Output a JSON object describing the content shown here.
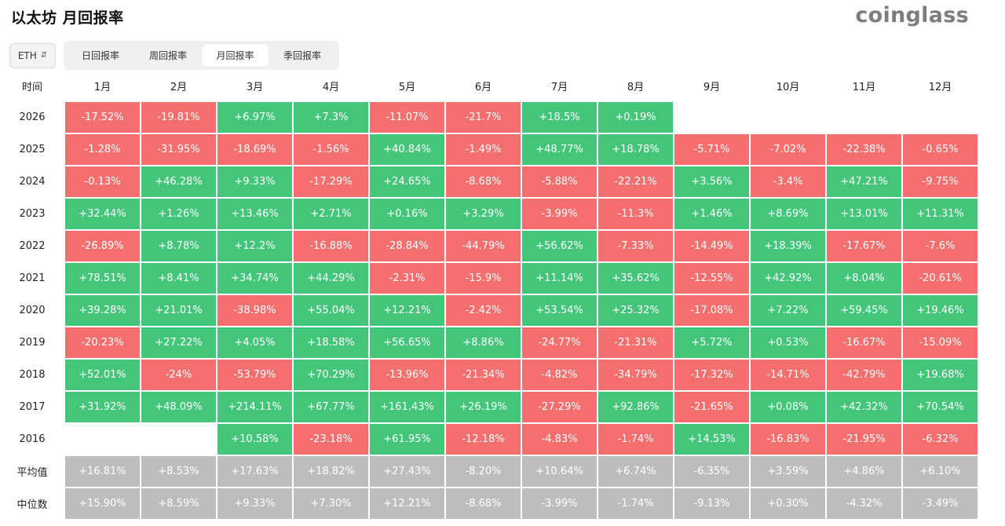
{
  "header": {
    "title": "以太坊 月回报率",
    "brand": "coinglass"
  },
  "controls": {
    "asset": "ETH",
    "tabs": [
      {
        "label": "日回报率",
        "active": false
      },
      {
        "label": "周回报率",
        "active": false
      },
      {
        "label": "月回报率",
        "active": true
      },
      {
        "label": "季回报率",
        "active": false
      }
    ]
  },
  "colors": {
    "negative": "#f56f6f",
    "positive": "#43c57a",
    "summary": "#bdbdbd"
  },
  "table": {
    "corner_label": "时间",
    "months": [
      "1月",
      "2月",
      "3月",
      "4月",
      "5月",
      "6月",
      "7月",
      "8月",
      "9月",
      "10月",
      "11月",
      "12月"
    ],
    "rows": [
      {
        "year": "2026",
        "values": [
          "-17.52%",
          "-19.81%",
          "+6.97%",
          "+7.3%",
          "-11.07%",
          "-21.7%",
          "+18.5%",
          "+0.19%",
          "",
          "",
          "",
          ""
        ]
      },
      {
        "year": "2025",
        "values": [
          "-1.28%",
          "-31.95%",
          "-18.69%",
          "-1.56%",
          "+40.84%",
          "-1.49%",
          "+48.77%",
          "+18.78%",
          "-5.71%",
          "-7.02%",
          "-22.38%",
          "-0.65%"
        ]
      },
      {
        "year": "2024",
        "values": [
          "-0.13%",
          "+46.28%",
          "+9.33%",
          "-17.29%",
          "+24.65%",
          "-8.68%",
          "-5.88%",
          "-22.21%",
          "+3.56%",
          "-3.4%",
          "+47.21%",
          "-9.75%"
        ]
      },
      {
        "year": "2023",
        "values": [
          "+32.44%",
          "+1.26%",
          "+13.46%",
          "+2.71%",
          "+0.16%",
          "+3.29%",
          "-3.99%",
          "-11.3%",
          "+1.46%",
          "+8.69%",
          "+13.01%",
          "+11.31%"
        ]
      },
      {
        "year": "2022",
        "values": [
          "-26.89%",
          "+8.78%",
          "+12.2%",
          "-16.88%",
          "-28.84%",
          "-44.79%",
          "+56.62%",
          "-7.33%",
          "-14.49%",
          "+18.39%",
          "-17.67%",
          "-7.6%"
        ]
      },
      {
        "year": "2021",
        "values": [
          "+78.51%",
          "+8.41%",
          "+34.74%",
          "+44.29%",
          "-2.31%",
          "-15.9%",
          "+11.14%",
          "+35.62%",
          "-12.55%",
          "+42.92%",
          "+8.04%",
          "-20.61%"
        ]
      },
      {
        "year": "2020",
        "values": [
          "+39.28%",
          "+21.01%",
          "-38.98%",
          "+55.04%",
          "+12.21%",
          "-2.42%",
          "+53.54%",
          "+25.32%",
          "-17.08%",
          "+7.22%",
          "+59.45%",
          "+19.46%"
        ]
      },
      {
        "year": "2019",
        "values": [
          "-20.23%",
          "+27.22%",
          "+4.05%",
          "+18.58%",
          "+56.65%",
          "+8.86%",
          "-24.77%",
          "-21.31%",
          "+5.72%",
          "+0.53%",
          "-16.67%",
          "-15.09%"
        ]
      },
      {
        "year": "2018",
        "values": [
          "+52.01%",
          "-24%",
          "-53.79%",
          "+70.29%",
          "-13.96%",
          "-21.34%",
          "-4.82%",
          "-34.79%",
          "-17.32%",
          "-14.71%",
          "-42.79%",
          "+19.68%"
        ]
      },
      {
        "year": "2017",
        "values": [
          "+31.92%",
          "+48.09%",
          "+214.11%",
          "+67.77%",
          "+161.43%",
          "+26.19%",
          "-27.29%",
          "+92.86%",
          "-21.65%",
          "+0.08%",
          "+42.32%",
          "+70.54%"
        ]
      },
      {
        "year": "2016",
        "values": [
          "",
          "",
          "+10.58%",
          "-23.18%",
          "+61.95%",
          "-12.18%",
          "-4.83%",
          "-1.74%",
          "+14.53%",
          "-16.83%",
          "-21.95%",
          "-6.32%"
        ]
      }
    ],
    "summary": [
      {
        "label": "平均值",
        "values": [
          "+16.81%",
          "+8.53%",
          "+17.63%",
          "+18.82%",
          "+27.43%",
          "-8.20%",
          "+10.64%",
          "+6.74%",
          "-6.35%",
          "+3.59%",
          "+4.86%",
          "+6.10%"
        ]
      },
      {
        "label": "中位数",
        "values": [
          "+15.90%",
          "+8.59%",
          "+9.33%",
          "+7.30%",
          "+12.21%",
          "-8.68%",
          "-3.99%",
          "-1.74%",
          "-9.13%",
          "+0.30%",
          "-4.32%",
          "-3.49%"
        ]
      }
    ]
  }
}
